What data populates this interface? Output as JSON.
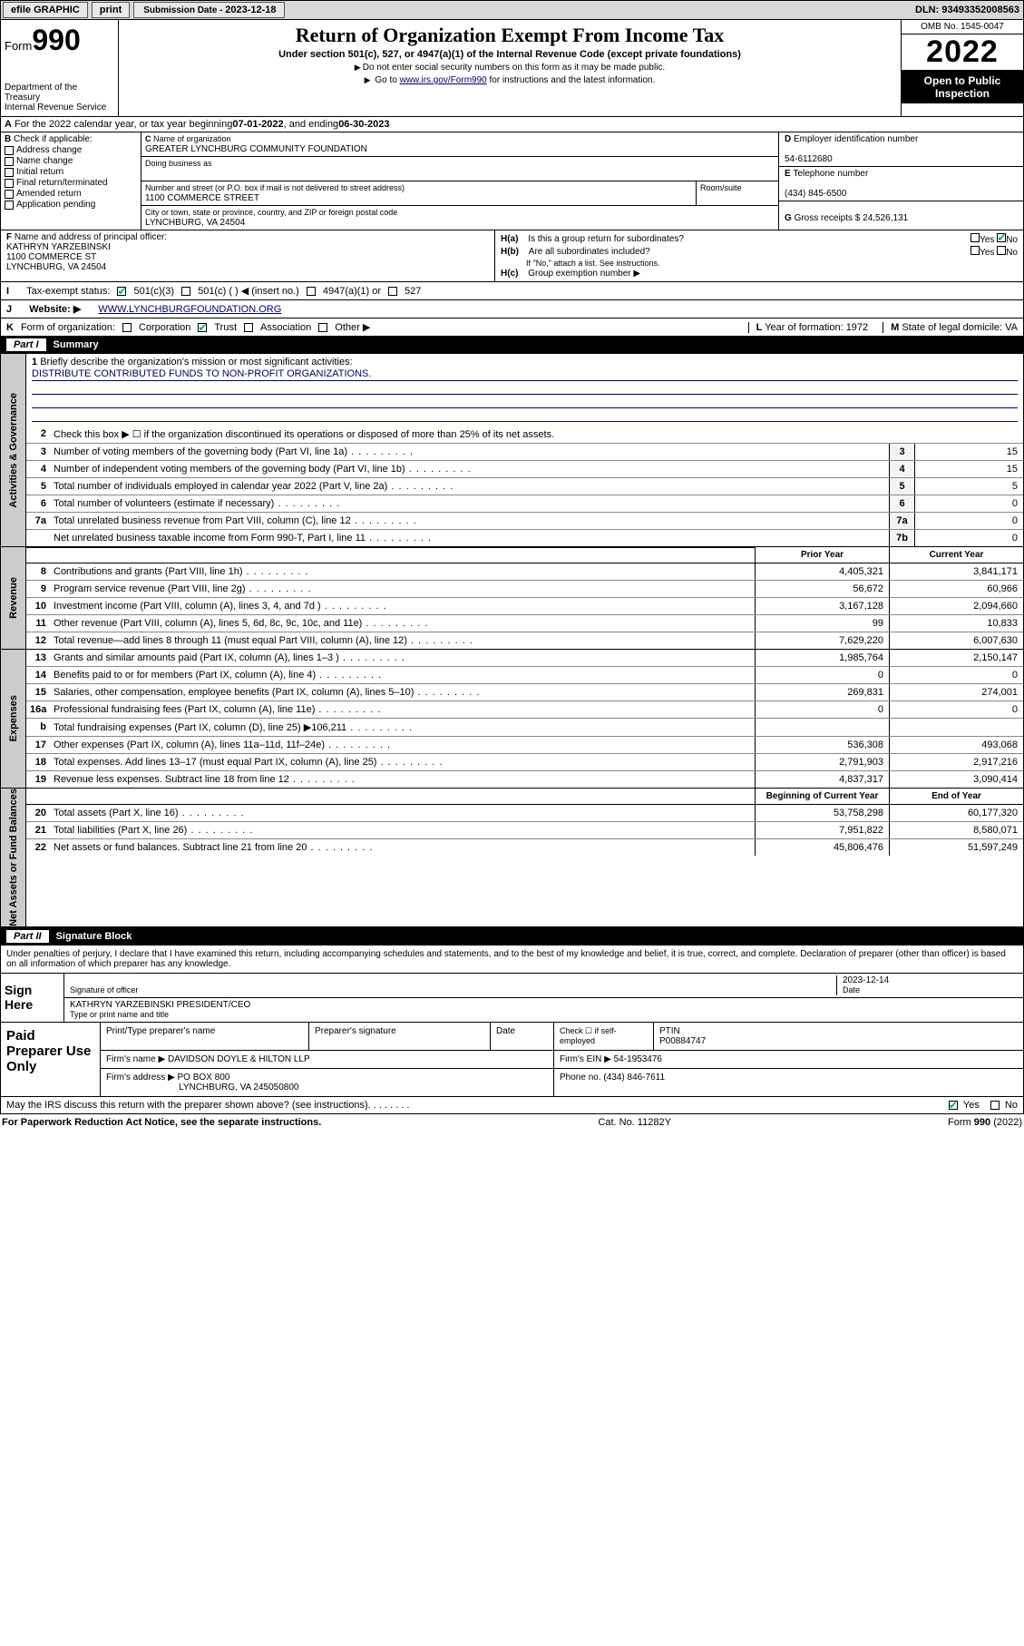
{
  "topbar": {
    "efile": "efile GRAPHIC",
    "print": "print",
    "subdate_label": "Submission Date - ",
    "subdate": "2023-12-18",
    "dln": "DLN: 93493352008563"
  },
  "header": {
    "form_label": "Form",
    "form_num": "990",
    "dept": "Department of the Treasury",
    "irs": "Internal Revenue Service",
    "title": "Return of Organization Exempt From Income Tax",
    "sub": "Under section 501(c), 527, or 4947(a)(1) of the Internal Revenue Code (except private foundations)",
    "note1": "Do not enter social security numbers on this form as it may be made public.",
    "note2_a": "Go to ",
    "note2_link": "www.irs.gov/Form990",
    "note2_b": " for instructions and the latest information.",
    "omb": "OMB No. 1545-0047",
    "year": "2022",
    "pubinspect": "Open to Public Inspection"
  },
  "lineA": {
    "text_a": "For the 2022 calendar year, or tax year beginning ",
    "begin": "07-01-2022",
    "text_b": " , and ending ",
    "end": "06-30-2023"
  },
  "B": {
    "label": "Check if applicable:",
    "opts": [
      "Address change",
      "Name change",
      "Initial return",
      "Final return/terminated",
      "Amended return",
      "Application pending"
    ]
  },
  "C": {
    "name_label": "Name of organization",
    "name": "GREATER LYNCHBURG COMMUNITY FOUNDATION",
    "dba_label": "Doing business as",
    "street_label": "Number and street (or P.O. box if mail is not delivered to street address)",
    "room_label": "Room/suite",
    "street": "1100 COMMERCE STREET",
    "city_label": "City or town, state or province, country, and ZIP or foreign postal code",
    "city": "LYNCHBURG, VA  24504"
  },
  "D": {
    "label": "Employer identification number",
    "val": "54-6112680"
  },
  "E": {
    "label": "Telephone number",
    "val": "(434) 845-6500"
  },
  "G": {
    "label": "Gross receipts $",
    "val": "24,526,131"
  },
  "F": {
    "label": "Name and address of principal officer:",
    "name": "KATHRYN YARZEBINSKI",
    "addr1": "1100 COMMERCE ST",
    "addr2": "LYNCHBURG, VA  24504"
  },
  "H": {
    "ha": "Is this a group return for subordinates?",
    "ha_no": true,
    "hb": "Are all subordinates included?",
    "hb_note": "If \"No,\" attach a list. See instructions.",
    "hc": "Group exemption number ▶"
  },
  "I": {
    "label": "Tax-exempt status:",
    "c501c3": true,
    "opts": [
      "501(c)(3)",
      "501(c) (  ) ◀ (insert no.)",
      "4947(a)(1) or",
      "527"
    ]
  },
  "J": {
    "label": "Website: ▶",
    "val": "WWW.LYNCHBURGFOUNDATION.ORG"
  },
  "K": {
    "label": "Form of organization:",
    "opts": [
      "Corporation",
      "Trust",
      "Association",
      "Other ▶"
    ],
    "trust": true
  },
  "L": {
    "label": "Year of formation:",
    "val": "1972"
  },
  "M": {
    "label": "State of legal domicile:",
    "val": "VA"
  },
  "partI": {
    "label": "Part I",
    "title": "Summary"
  },
  "mission": {
    "q": "Briefly describe the organization's mission or most significant activities:",
    "a": "DISTRIBUTE CONTRIBUTED FUNDS TO NON-PROFIT ORGANIZATIONS."
  },
  "line2": "Check this box ▶ ☐  if the organization discontinued its operations or disposed of more than 25% of its net assets.",
  "gov_lines": [
    {
      "n": "3",
      "d": "Number of voting members of the governing body (Part VI, line 1a)",
      "c": "3",
      "v": "15"
    },
    {
      "n": "4",
      "d": "Number of independent voting members of the governing body (Part VI, line 1b)",
      "c": "4",
      "v": "15"
    },
    {
      "n": "5",
      "d": "Total number of individuals employed in calendar year 2022 (Part V, line 2a)",
      "c": "5",
      "v": "5"
    },
    {
      "n": "6",
      "d": "Total number of volunteers (estimate if necessary)",
      "c": "6",
      "v": "0"
    },
    {
      "n": "7a",
      "d": "Total unrelated business revenue from Part VIII, column (C), line 12",
      "c": "7a",
      "v": "0"
    },
    {
      "n": "",
      "d": "Net unrelated business taxable income from Form 990-T, Part I, line 11",
      "c": "7b",
      "v": "0"
    }
  ],
  "col_hdrs": {
    "prior": "Prior Year",
    "curr": "Current Year",
    "begin": "Beginning of Current Year",
    "end": "End of Year"
  },
  "rev_lines": [
    {
      "n": "8",
      "d": "Contributions and grants (Part VIII, line 1h)",
      "p": "4,405,321",
      "c": "3,841,171"
    },
    {
      "n": "9",
      "d": "Program service revenue (Part VIII, line 2g)",
      "p": "56,672",
      "c": "60,966"
    },
    {
      "n": "10",
      "d": "Investment income (Part VIII, column (A), lines 3, 4, and 7d )",
      "p": "3,167,128",
      "c": "2,094,660"
    },
    {
      "n": "11",
      "d": "Other revenue (Part VIII, column (A), lines 5, 6d, 8c, 9c, 10c, and 11e)",
      "p": "99",
      "c": "10,833"
    },
    {
      "n": "12",
      "d": "Total revenue—add lines 8 through 11 (must equal Part VIII, column (A), line 12)",
      "p": "7,629,220",
      "c": "6,007,630"
    }
  ],
  "exp_lines": [
    {
      "n": "13",
      "d": "Grants and similar amounts paid (Part IX, column (A), lines 1–3 )",
      "p": "1,985,764",
      "c": "2,150,147"
    },
    {
      "n": "14",
      "d": "Benefits paid to or for members (Part IX, column (A), line 4)",
      "p": "0",
      "c": "0"
    },
    {
      "n": "15",
      "d": "Salaries, other compensation, employee benefits (Part IX, column (A), lines 5–10)",
      "p": "269,831",
      "c": "274,001"
    },
    {
      "n": "16a",
      "d": "Professional fundraising fees (Part IX, column (A), line 11e)",
      "p": "0",
      "c": "0"
    },
    {
      "n": "b",
      "d": "Total fundraising expenses (Part IX, column (D), line 25) ▶106,211",
      "p": "",
      "c": ""
    },
    {
      "n": "17",
      "d": "Other expenses (Part IX, column (A), lines 11a–11d, 11f–24e)",
      "p": "536,308",
      "c": "493,068"
    },
    {
      "n": "18",
      "d": "Total expenses. Add lines 13–17 (must equal Part IX, column (A), line 25)",
      "p": "2,791,903",
      "c": "2,917,216"
    },
    {
      "n": "19",
      "d": "Revenue less expenses. Subtract line 18 from line 12",
      "p": "4,837,317",
      "c": "3,090,414"
    }
  ],
  "net_lines": [
    {
      "n": "20",
      "d": "Total assets (Part X, line 16)",
      "p": "53,758,298",
      "c": "60,177,320"
    },
    {
      "n": "21",
      "d": "Total liabilities (Part X, line 26)",
      "p": "7,951,822",
      "c": "8,580,071"
    },
    {
      "n": "22",
      "d": "Net assets or fund balances. Subtract line 21 from line 20",
      "p": "45,806,476",
      "c": "51,597,249"
    }
  ],
  "sidetabs": {
    "gov": "Activities & Governance",
    "rev": "Revenue",
    "exp": "Expenses",
    "net": "Net Assets or Fund Balances"
  },
  "partII": {
    "label": "Part II",
    "title": "Signature Block"
  },
  "perjury": "Under penalties of perjury, I declare that I have examined this return, including accompanying schedules and statements, and to the best of my knowledge and belief, it is true, correct, and complete. Declaration of preparer (other than officer) is based on all information of which preparer has any knowledge.",
  "sign": {
    "here": "Sign Here",
    "sig_label": "Signature of officer",
    "date_label": "Date",
    "date": "2023-12-14",
    "name": "KATHRYN YARZEBINSKI  PRESIDENT/CEO",
    "name_label": "Type or print name and title"
  },
  "prep": {
    "label": "Paid Preparer Use Only",
    "h1": "Print/Type preparer's name",
    "h2": "Preparer's signature",
    "h3": "Date",
    "h4": "Check ☐ if self-employed",
    "h5_label": "PTIN",
    "h5": "P00884747",
    "firm_label": "Firm's name   ▶",
    "firm": "DAVIDSON DOYLE & HILTON LLP",
    "ein_label": "Firm's EIN ▶",
    "ein": "54-1953476",
    "addr_label": "Firm's address ▶",
    "addr1": "PO BOX 800",
    "addr2": "LYNCHBURG, VA  245050800",
    "phone_label": "Phone no.",
    "phone": "(434) 846-7611"
  },
  "discuss": {
    "q": "May the IRS discuss this return with the preparer shown above? (see instructions)",
    "yes": true
  },
  "bottom": {
    "left": "For Paperwork Reduction Act Notice, see the separate instructions.",
    "center": "Cat. No. 11282Y",
    "right": "Form 990 (2022)"
  }
}
